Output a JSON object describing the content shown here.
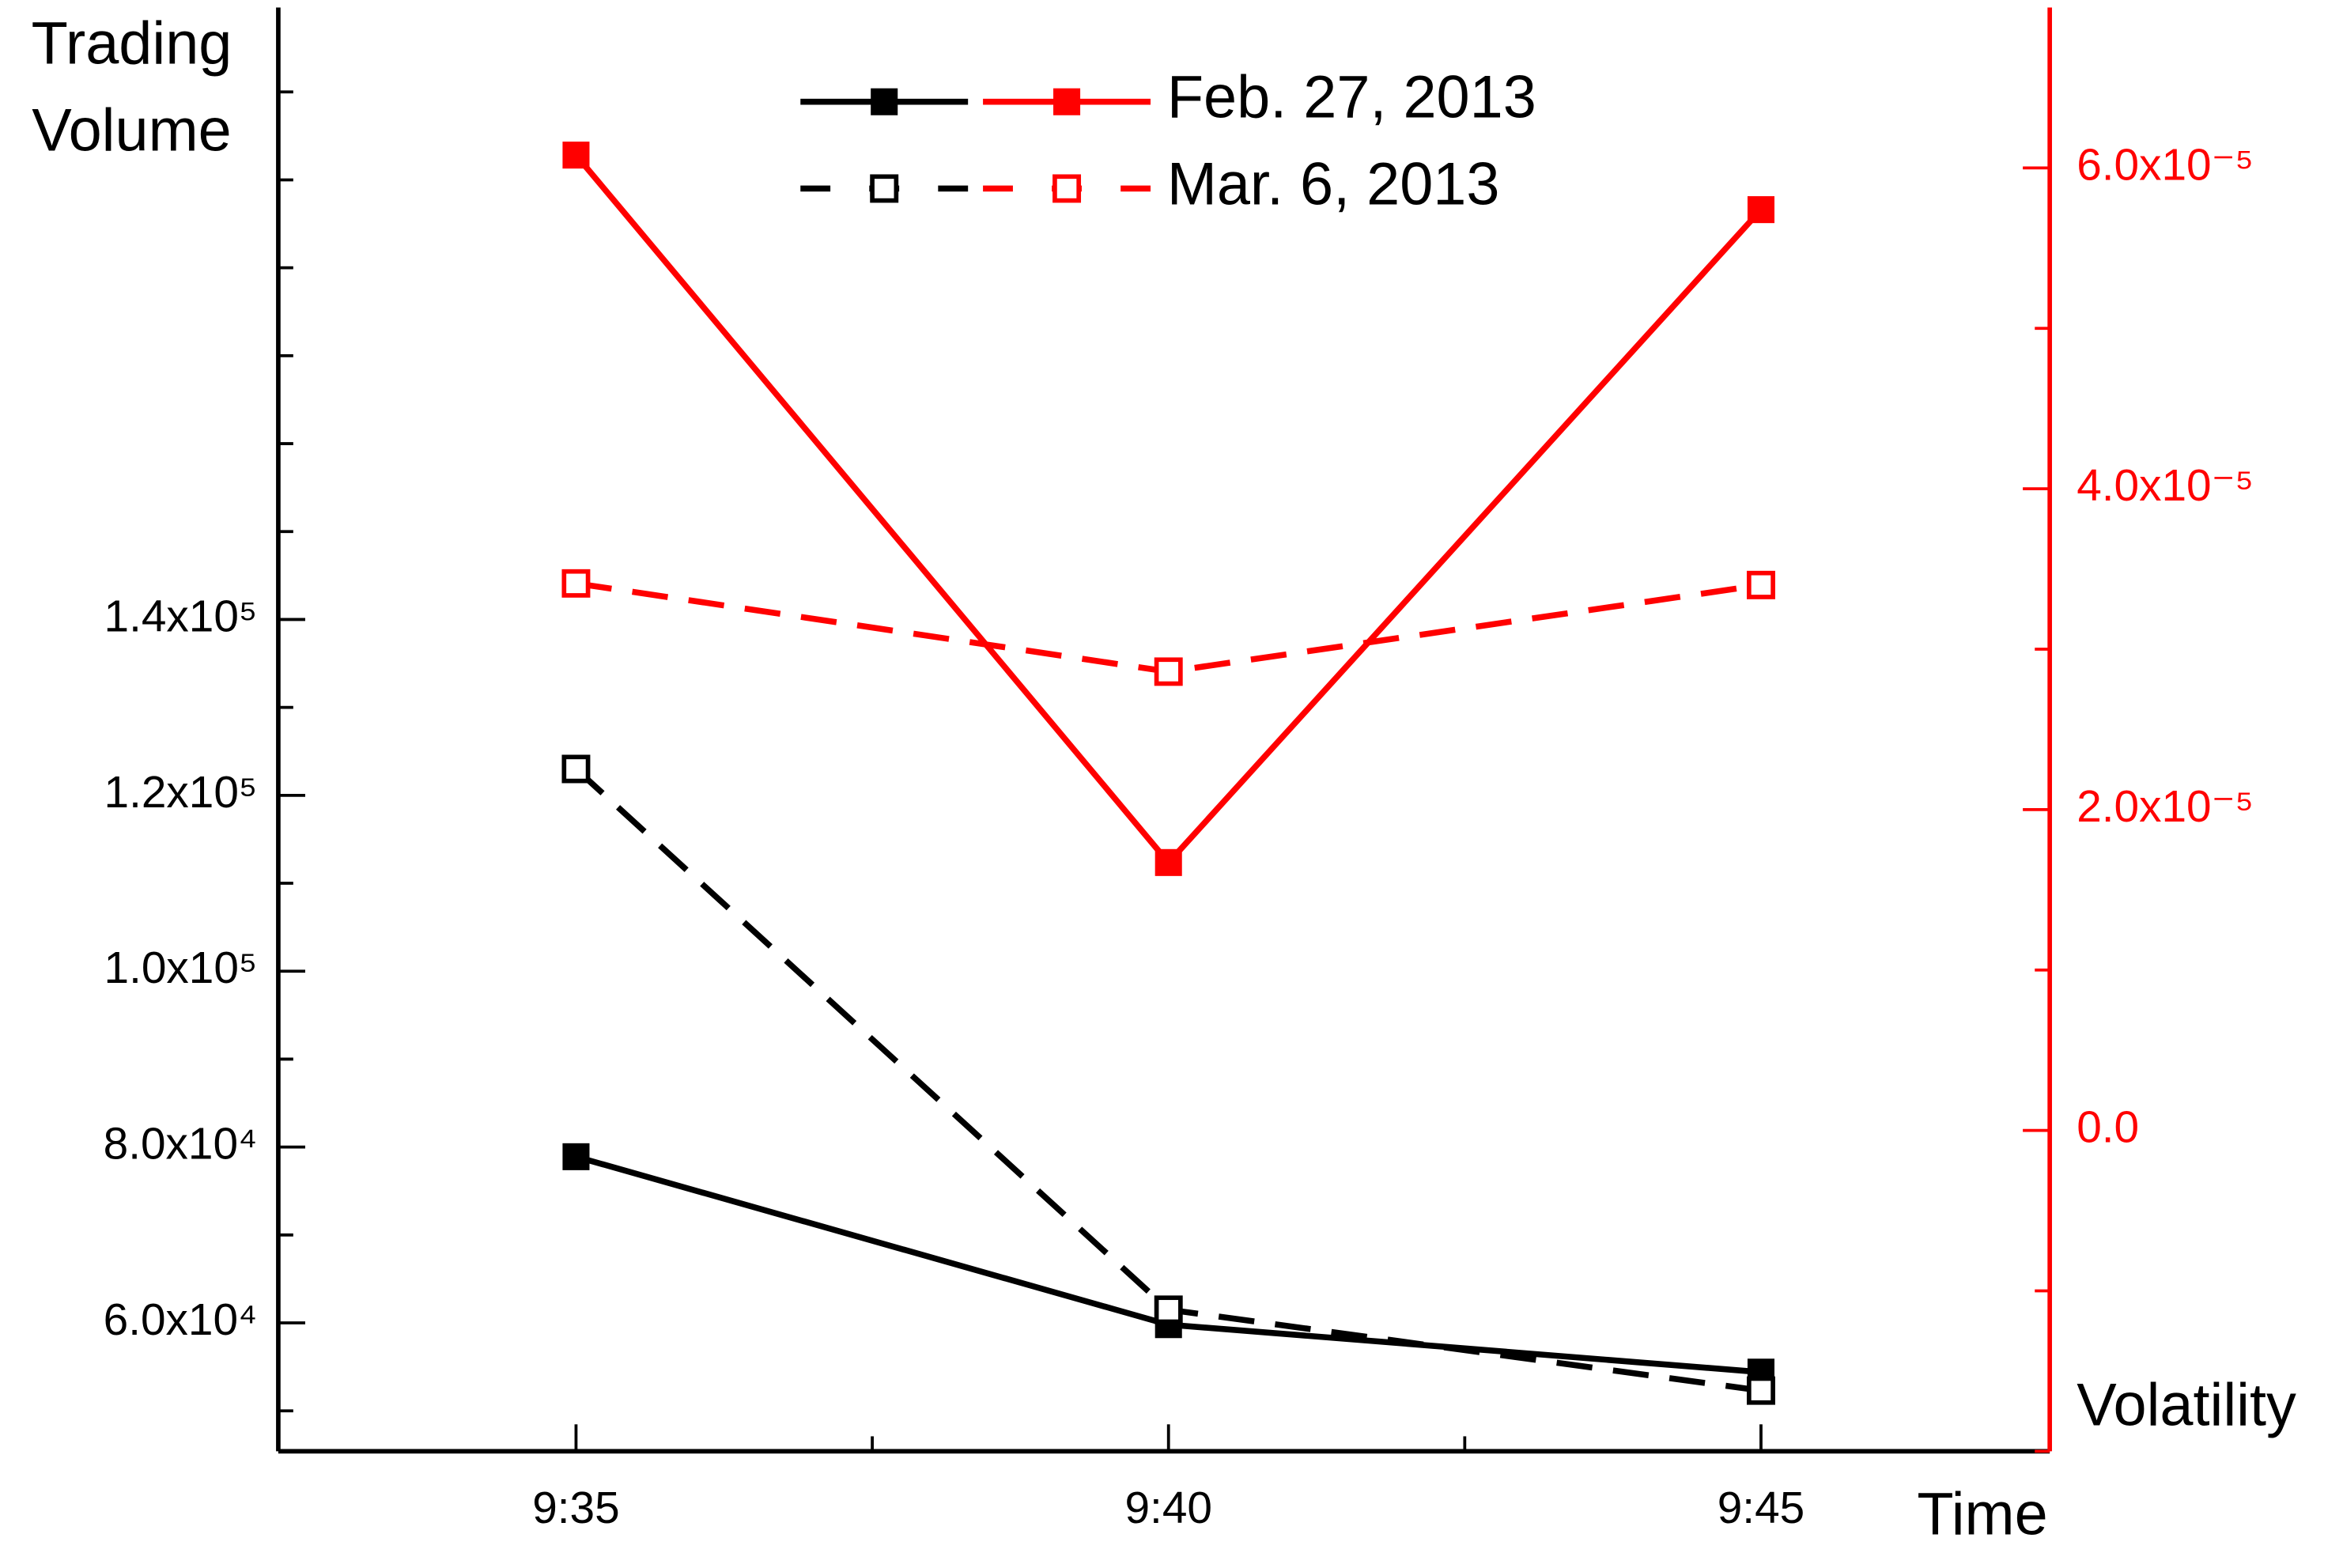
{
  "chart_data": {
    "type": "line",
    "xlabel": "Time",
    "ylabel": [
      "Trading",
      "Volume"
    ],
    "y2label": "Volatility",
    "categories": [
      "9:35",
      "9:40",
      "9:45"
    ],
    "ylim": [
      45400,
      209600
    ],
    "yticks": [
      {
        "value": 60000,
        "label": "6.0x10⁴"
      },
      {
        "value": 80000,
        "label": "8.0x10⁴"
      },
      {
        "value": 100000,
        "label": "1.0x10⁵"
      },
      {
        "value": 120000,
        "label": "1.2x10⁵"
      },
      {
        "value": 140000,
        "label": "1.4x10⁵"
      }
    ],
    "y2lim": [
      -2e-05,
      7e-05
    ],
    "y2ticks": [
      {
        "value": 0,
        "label": "0.0"
      },
      {
        "value": 2e-05,
        "label": "2.0x10⁻⁵"
      },
      {
        "value": 4e-05,
        "label": "4.0x10⁻⁵"
      },
      {
        "value": 6e-05,
        "label": "6.0x10⁻⁵"
      }
    ],
    "y2color": "#ff0000",
    "grid": false,
    "series": [
      {
        "name": "Feb. 27, 2013",
        "color": "#000000",
        "dash": false,
        "filled": true,
        "axis": "y",
        "values": [
          78900,
          59800,
          54400
        ]
      },
      {
        "name": "Mar. 6, 2013",
        "color": "#000000",
        "dash": true,
        "filled": false,
        "axis": "y",
        "values": [
          123000,
          61500,
          52300
        ]
      },
      {
        "name": "Feb. 27, 2013",
        "color": "#ff0000",
        "dash": false,
        "filled": true,
        "axis": "y2",
        "values": [
          6.08e-05,
          1.67e-05,
          5.74e-05
        ]
      },
      {
        "name": "Mar. 6, 2013",
        "color": "#ff0000",
        "dash": true,
        "filled": false,
        "axis": "y2",
        "values": [
          3.41e-05,
          2.86e-05,
          3.4e-05
        ]
      }
    ]
  }
}
